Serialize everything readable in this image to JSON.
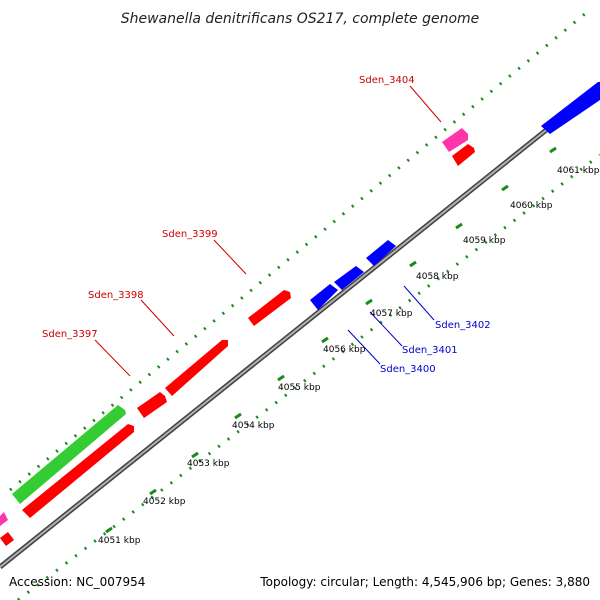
{
  "title": "Shewanella denitrificans OS217, complete genome",
  "footer": {
    "accession": "Accession: NC_007954",
    "topology": "Topology: circular; Length: 4,545,906 bp; Genes: 3,880"
  },
  "colors": {
    "backbone": "#808080",
    "dots": "#1a8a1a",
    "forward_gene": "#ff0000",
    "reverse_gene": "#0000ff",
    "rna_gene": "#ff33aa",
    "other_gene": "#33cc33",
    "forward_label": "#cc0000",
    "reverse_label": "#0000cc"
  },
  "scale_labels": [
    "4051 kbp",
    "4052 kbp",
    "4053 kbp",
    "4054 kbp",
    "4055 kbp",
    "4056 kbp",
    "4057 kbp",
    "4058 kbp",
    "4059 kbp",
    "4060 kbp",
    "4061 kbp"
  ],
  "gene_labels": {
    "forward": [
      "Sden_3397",
      "Sden_3398",
      "Sden_3399",
      "Sden_3404"
    ],
    "reverse": [
      "Sden_3400",
      "Sden_3401",
      "Sden_3402"
    ]
  }
}
